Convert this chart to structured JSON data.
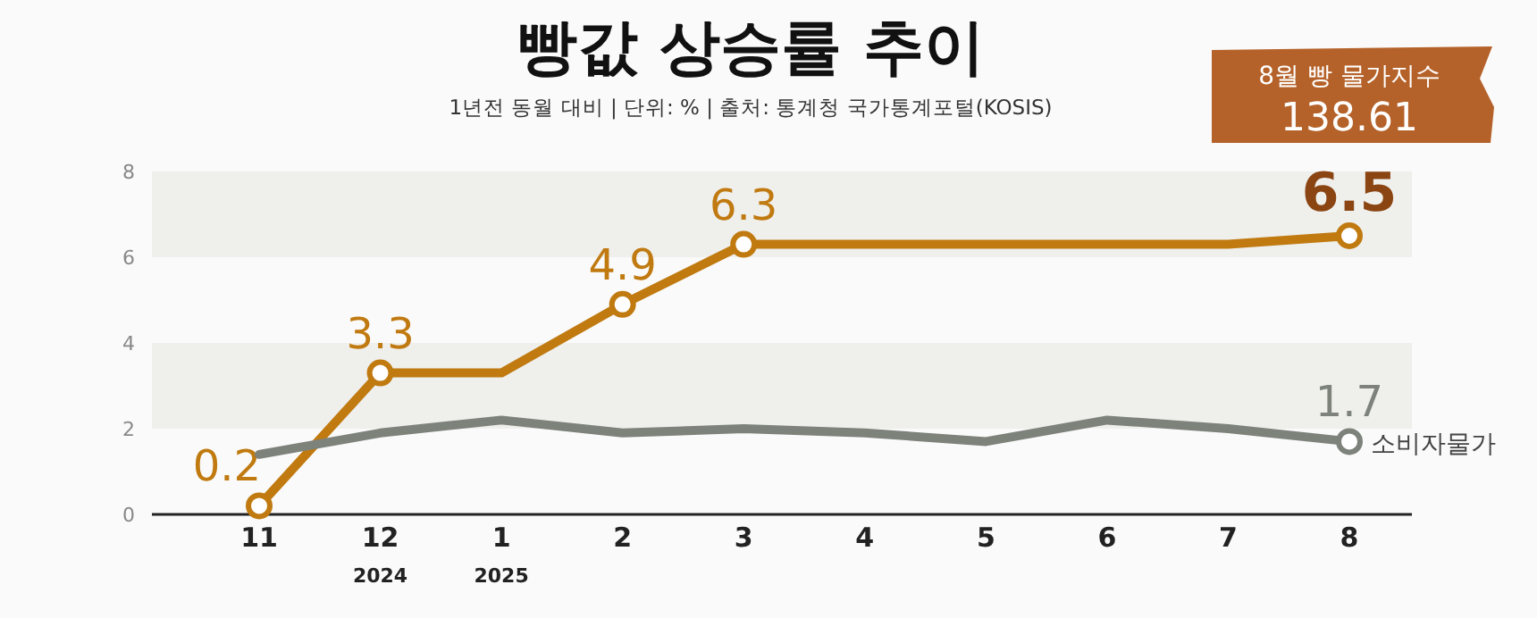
{
  "chart_data": {
    "type": "line",
    "title": "빵값 상승률 추이",
    "subtitle": "1년전 동월 대비 | 단위: % | 출처: 통계청 국가통계포털(KOSIS)",
    "annotations": [
      "8월 빵 물가지수\n138.61"
    ],
    "categories": [
      "11",
      "12\n2024",
      "1\n2025",
      "2",
      "3",
      "4",
      "5",
      "6",
      "7",
      "8"
    ],
    "series": [
      {
        "color": "#c07a10",
        "values": [
          0.2,
          3.3,
          3.3,
          4.9,
          6.3,
          6.3,
          6.3,
          6.3,
          6.3,
          6.5
        ],
        "value_labels": [
          "0.2",
          "3.3",
          null,
          "4.9",
          "6.3",
          null,
          null,
          null,
          null,
          "6.5"
        ]
      },
      {
        "name": "소비자물가",
        "color": "#7d827b",
        "values": [
          1.4,
          1.9,
          2.2,
          1.9,
          2.0,
          1.9,
          1.7,
          2.2,
          2.0,
          1.7
        ],
        "value_labels": [
          null,
          null,
          null,
          null,
          null,
          null,
          null,
          null,
          null,
          "1.7"
        ]
      }
    ],
    "ylim": [
      0,
      8
    ],
    "yticks": [
      0,
      2,
      4,
      6,
      8
    ],
    "grid": false,
    "line_style": "solid",
    "bands": [
      {
        "axis": "y",
        "from": 2,
        "to": 4,
        "color": "#efefec"
      },
      {
        "axis": "y",
        "from": 6,
        "to": 8,
        "color": "#efefec"
      }
    ]
  }
}
